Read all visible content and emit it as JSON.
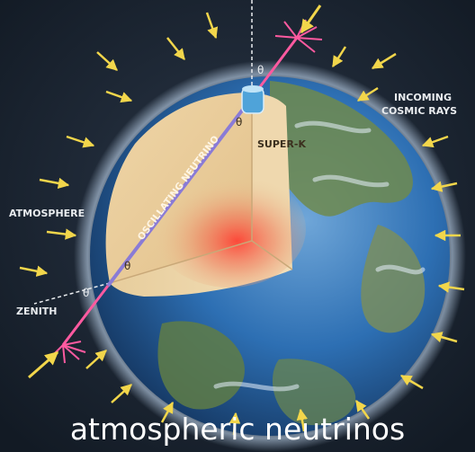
{
  "labels": {
    "incoming_cosmic_rays_line1": "INCOMING",
    "incoming_cosmic_rays_line2": "COSMIC RAYS",
    "atmosphere": "ATMOSPHERE",
    "zenith": "ZENITH",
    "super_k": "SUPER-K",
    "oscillating_neutrino": "OSCILLATING NEUTRINO",
    "theta": "θ"
  },
  "caption": "atmospheric neutrinos",
  "colors": {
    "space": "#1b2533",
    "ocean": "#2d6fb3",
    "land": "#6f8a4e",
    "atmosphere_glow": "#cfe6ff",
    "crust": "#e9cc9a",
    "core": "#ff3b30",
    "cosmic_ray_arrow": "#f2d64b",
    "neutrino_path": "#8a7bd6",
    "cosmic_shower": "#ff5aa0"
  }
}
